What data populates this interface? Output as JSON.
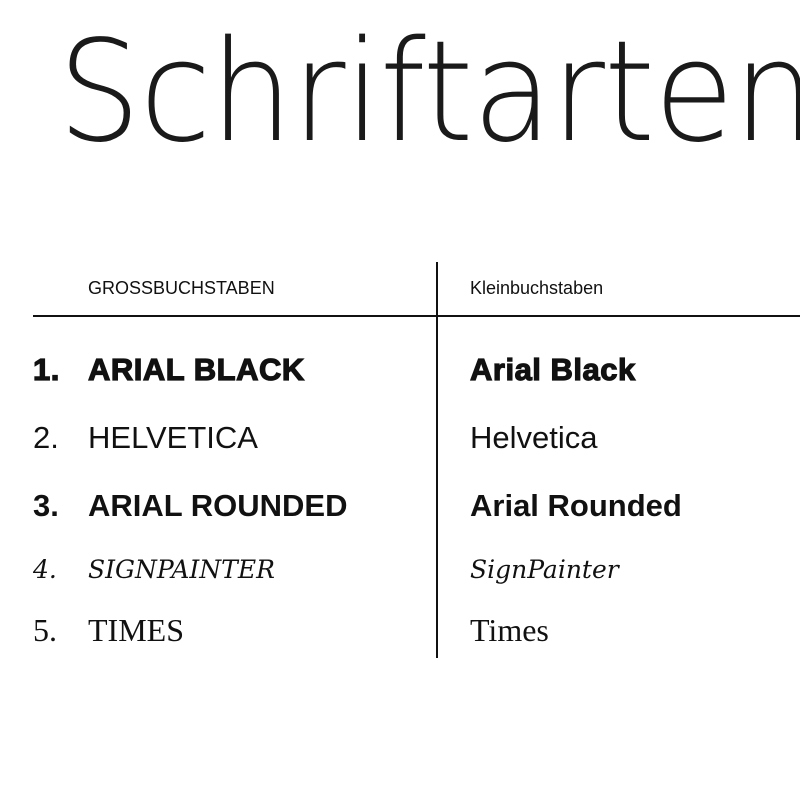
{
  "title": "Schriftarten",
  "headers": {
    "uppercase": "GROSSBUCHSTABEN",
    "lowercase": "Kleinbuchstaben"
  },
  "fonts": [
    {
      "number": "1.",
      "uppercase": "ARIAL BLACK",
      "lowercase": "Arial Black"
    },
    {
      "number": "2.",
      "uppercase": "HELVETICA",
      "lowercase": "Helvetica"
    },
    {
      "number": "3.",
      "uppercase": "ARIAL ROUNDED",
      "lowercase": "Arial Rounded"
    },
    {
      "number": "4.",
      "uppercase": "SIGNPAINTER",
      "lowercase": "SignPainter"
    },
    {
      "number": "5.",
      "uppercase": "TIMES",
      "lowercase": "Times"
    }
  ]
}
